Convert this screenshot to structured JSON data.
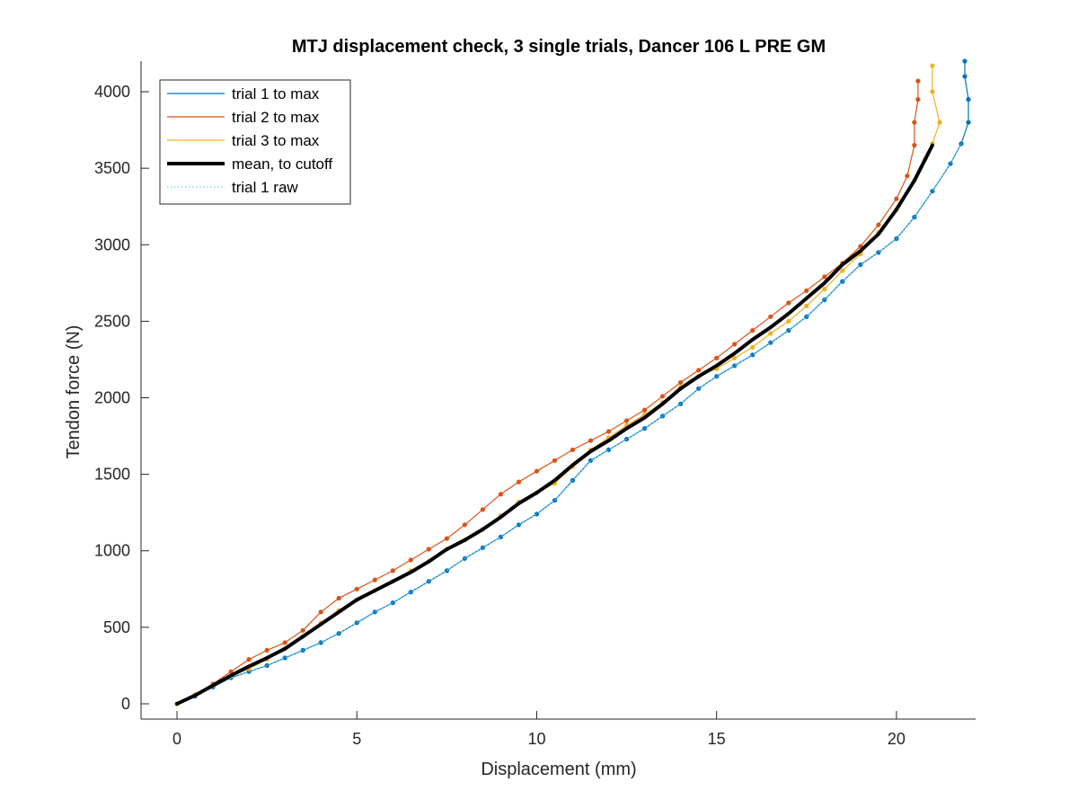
{
  "chart_data": {
    "type": "line",
    "title": "MTJ displacement check, 3 single trials, Dancer 106 L PRE GM",
    "xlabel": "Displacement (mm)",
    "ylabel": "Tendon force (N)",
    "xlim": [
      -1,
      22.2
    ],
    "ylim": [
      -100,
      4200
    ],
    "xticks": [
      "0",
      "5",
      "10",
      "15",
      "20"
    ],
    "yticks": [
      "0",
      "500",
      "1000",
      "1500",
      "2000",
      "2500",
      "3000",
      "3500",
      "4000"
    ],
    "legend_position": "top-left",
    "grid": false,
    "series": [
      {
        "name": "trial 1 to max",
        "color": "#0072BD",
        "style": "solid-with-dots",
        "points": [
          [
            0,
            0
          ],
          [
            0.5,
            50
          ],
          [
            1.0,
            110
          ],
          [
            1.5,
            170
          ],
          [
            2.0,
            210
          ],
          [
            2.5,
            250
          ],
          [
            3.0,
            300
          ],
          [
            3.5,
            350
          ],
          [
            4.0,
            400
          ],
          [
            4.5,
            460
          ],
          [
            5.0,
            530
          ],
          [
            5.5,
            600
          ],
          [
            6.0,
            660
          ],
          [
            6.5,
            730
          ],
          [
            7.0,
            800
          ],
          [
            7.5,
            870
          ],
          [
            8.0,
            950
          ],
          [
            8.5,
            1020
          ],
          [
            9.0,
            1090
          ],
          [
            9.5,
            1170
          ],
          [
            10.0,
            1240
          ],
          [
            10.5,
            1330
          ],
          [
            11.0,
            1460
          ],
          [
            11.5,
            1590
          ],
          [
            12.0,
            1660
          ],
          [
            12.5,
            1730
          ],
          [
            13.0,
            1800
          ],
          [
            13.5,
            1880
          ],
          [
            14.0,
            1960
          ],
          [
            14.5,
            2060
          ],
          [
            15.0,
            2140
          ],
          [
            15.5,
            2210
          ],
          [
            16.0,
            2280
          ],
          [
            16.5,
            2360
          ],
          [
            17.0,
            2440
          ],
          [
            17.5,
            2530
          ],
          [
            18.0,
            2640
          ],
          [
            18.5,
            2760
          ],
          [
            19.0,
            2870
          ],
          [
            19.5,
            2950
          ],
          [
            20.0,
            3040
          ],
          [
            20.5,
            3180
          ],
          [
            21.0,
            3350
          ],
          [
            21.5,
            3530
          ],
          [
            21.8,
            3660
          ],
          [
            22.0,
            3800
          ],
          [
            22.0,
            3950
          ],
          [
            21.9,
            4100
          ],
          [
            21.9,
            4200
          ]
        ]
      },
      {
        "name": "trial 2 to max",
        "color": "#D95319",
        "style": "solid-with-dots",
        "points": [
          [
            0,
            0
          ],
          [
            0.5,
            60
          ],
          [
            1.0,
            130
          ],
          [
            1.5,
            210
          ],
          [
            2.0,
            290
          ],
          [
            2.5,
            350
          ],
          [
            3.0,
            400
          ],
          [
            3.5,
            480
          ],
          [
            4.0,
            600
          ],
          [
            4.5,
            690
          ],
          [
            5.0,
            750
          ],
          [
            5.5,
            810
          ],
          [
            6.0,
            870
          ],
          [
            6.5,
            940
          ],
          [
            7.0,
            1010
          ],
          [
            7.5,
            1080
          ],
          [
            8.0,
            1170
          ],
          [
            8.5,
            1270
          ],
          [
            9.0,
            1370
          ],
          [
            9.5,
            1450
          ],
          [
            10.0,
            1520
          ],
          [
            10.5,
            1590
          ],
          [
            11.0,
            1660
          ],
          [
            11.5,
            1720
          ],
          [
            12.0,
            1780
          ],
          [
            12.5,
            1850
          ],
          [
            13.0,
            1920
          ],
          [
            13.5,
            2010
          ],
          [
            14.0,
            2100
          ],
          [
            14.5,
            2180
          ],
          [
            15.0,
            2260
          ],
          [
            15.5,
            2350
          ],
          [
            16.0,
            2440
          ],
          [
            16.5,
            2530
          ],
          [
            17.0,
            2620
          ],
          [
            17.5,
            2700
          ],
          [
            18.0,
            2790
          ],
          [
            18.5,
            2880
          ],
          [
            19.0,
            2990
          ],
          [
            19.5,
            3130
          ],
          [
            20.0,
            3300
          ],
          [
            20.3,
            3450
          ],
          [
            20.5,
            3650
          ],
          [
            20.5,
            3800
          ],
          [
            20.6,
            3950
          ],
          [
            20.6,
            4070
          ]
        ]
      },
      {
        "name": "trial 3 to max",
        "color": "#EDB120",
        "style": "solid-with-dots",
        "points": [
          [
            0,
            0
          ],
          [
            0.5,
            60
          ],
          [
            1.0,
            120
          ],
          [
            1.5,
            180
          ],
          [
            2.0,
            230
          ],
          [
            2.5,
            290
          ],
          [
            3.0,
            360
          ],
          [
            3.5,
            440
          ],
          [
            4.0,
            530
          ],
          [
            4.5,
            610
          ],
          [
            5.0,
            680
          ],
          [
            5.5,
            740
          ],
          [
            6.0,
            800
          ],
          [
            6.5,
            870
          ],
          [
            7.0,
            930
          ],
          [
            7.5,
            1010
          ],
          [
            8.0,
            1070
          ],
          [
            8.5,
            1140
          ],
          [
            9.0,
            1230
          ],
          [
            9.5,
            1320
          ],
          [
            10.0,
            1380
          ],
          [
            10.5,
            1440
          ],
          [
            11.0,
            1550
          ],
          [
            11.5,
            1660
          ],
          [
            12.0,
            1740
          ],
          [
            12.5,
            1820
          ],
          [
            13.0,
            1890
          ],
          [
            13.5,
            1970
          ],
          [
            14.0,
            2070
          ],
          [
            14.5,
            2140
          ],
          [
            15.0,
            2190
          ],
          [
            15.5,
            2260
          ],
          [
            16.0,
            2330
          ],
          [
            16.5,
            2420
          ],
          [
            17.0,
            2500
          ],
          [
            17.5,
            2600
          ],
          [
            18.0,
            2710
          ],
          [
            18.5,
            2830
          ],
          [
            19.0,
            2940
          ],
          [
            19.5,
            3080
          ],
          [
            20.0,
            3230
          ],
          [
            20.5,
            3420
          ],
          [
            20.8,
            3560
          ],
          [
            21.0,
            3660
          ],
          [
            21.2,
            3800
          ],
          [
            21.0,
            4000
          ],
          [
            21.0,
            4170
          ]
        ]
      },
      {
        "name": "mean, to cutoff",
        "color": "#000000",
        "style": "thick-solid",
        "points": [
          [
            0,
            0
          ],
          [
            0.5,
            55
          ],
          [
            1.0,
            120
          ],
          [
            1.5,
            185
          ],
          [
            2.0,
            245
          ],
          [
            2.5,
            300
          ],
          [
            3.0,
            360
          ],
          [
            3.5,
            440
          ],
          [
            4.0,
            520
          ],
          [
            4.5,
            600
          ],
          [
            5.0,
            680
          ],
          [
            5.5,
            740
          ],
          [
            6.0,
            800
          ],
          [
            6.5,
            860
          ],
          [
            7.0,
            930
          ],
          [
            7.5,
            1010
          ],
          [
            8.0,
            1070
          ],
          [
            8.5,
            1140
          ],
          [
            9.0,
            1220
          ],
          [
            9.5,
            1310
          ],
          [
            10.0,
            1380
          ],
          [
            10.5,
            1460
          ],
          [
            11.0,
            1560
          ],
          [
            11.5,
            1650
          ],
          [
            12.0,
            1720
          ],
          [
            12.5,
            1800
          ],
          [
            13.0,
            1870
          ],
          [
            13.5,
            1960
          ],
          [
            14.0,
            2060
          ],
          [
            14.5,
            2140
          ],
          [
            15.0,
            2210
          ],
          [
            15.5,
            2290
          ],
          [
            16.0,
            2380
          ],
          [
            16.5,
            2460
          ],
          [
            17.0,
            2550
          ],
          [
            17.5,
            2650
          ],
          [
            18.0,
            2750
          ],
          [
            18.5,
            2870
          ],
          [
            19.0,
            2960
          ],
          [
            19.5,
            3070
          ],
          [
            20.0,
            3230
          ],
          [
            20.5,
            3420
          ],
          [
            21.0,
            3650
          ]
        ]
      },
      {
        "name": "trial 1 raw",
        "color": "#4DBEEE",
        "style": "dotted",
        "points": [
          [
            0,
            0
          ],
          [
            0.5,
            50
          ],
          [
            1.0,
            110
          ],
          [
            1.5,
            170
          ],
          [
            2.0,
            210
          ],
          [
            2.5,
            250
          ],
          [
            3.0,
            300
          ],
          [
            3.5,
            350
          ],
          [
            4.0,
            400
          ],
          [
            4.5,
            460
          ],
          [
            5.0,
            530
          ],
          [
            5.5,
            600
          ],
          [
            6.0,
            660
          ],
          [
            6.5,
            730
          ],
          [
            7.0,
            800
          ],
          [
            7.5,
            870
          ],
          [
            8.0,
            950
          ],
          [
            8.5,
            1020
          ],
          [
            9.0,
            1090
          ],
          [
            9.5,
            1170
          ],
          [
            10.0,
            1240
          ],
          [
            10.5,
            1330
          ],
          [
            11.0,
            1460
          ],
          [
            11.5,
            1590
          ],
          [
            12.0,
            1660
          ],
          [
            12.5,
            1730
          ],
          [
            13.0,
            1800
          ],
          [
            13.5,
            1880
          ],
          [
            14.0,
            1960
          ],
          [
            14.5,
            2060
          ],
          [
            15.0,
            2140
          ],
          [
            15.5,
            2210
          ],
          [
            16.0,
            2280
          ],
          [
            16.5,
            2360
          ],
          [
            17.0,
            2440
          ],
          [
            17.5,
            2530
          ],
          [
            18.0,
            2640
          ],
          [
            18.5,
            2760
          ],
          [
            19.0,
            2870
          ],
          [
            19.5,
            2950
          ],
          [
            20.0,
            3040
          ],
          [
            20.5,
            3180
          ],
          [
            21.0,
            3350
          ],
          [
            21.5,
            3530
          ],
          [
            21.8,
            3660
          ]
        ]
      }
    ]
  }
}
